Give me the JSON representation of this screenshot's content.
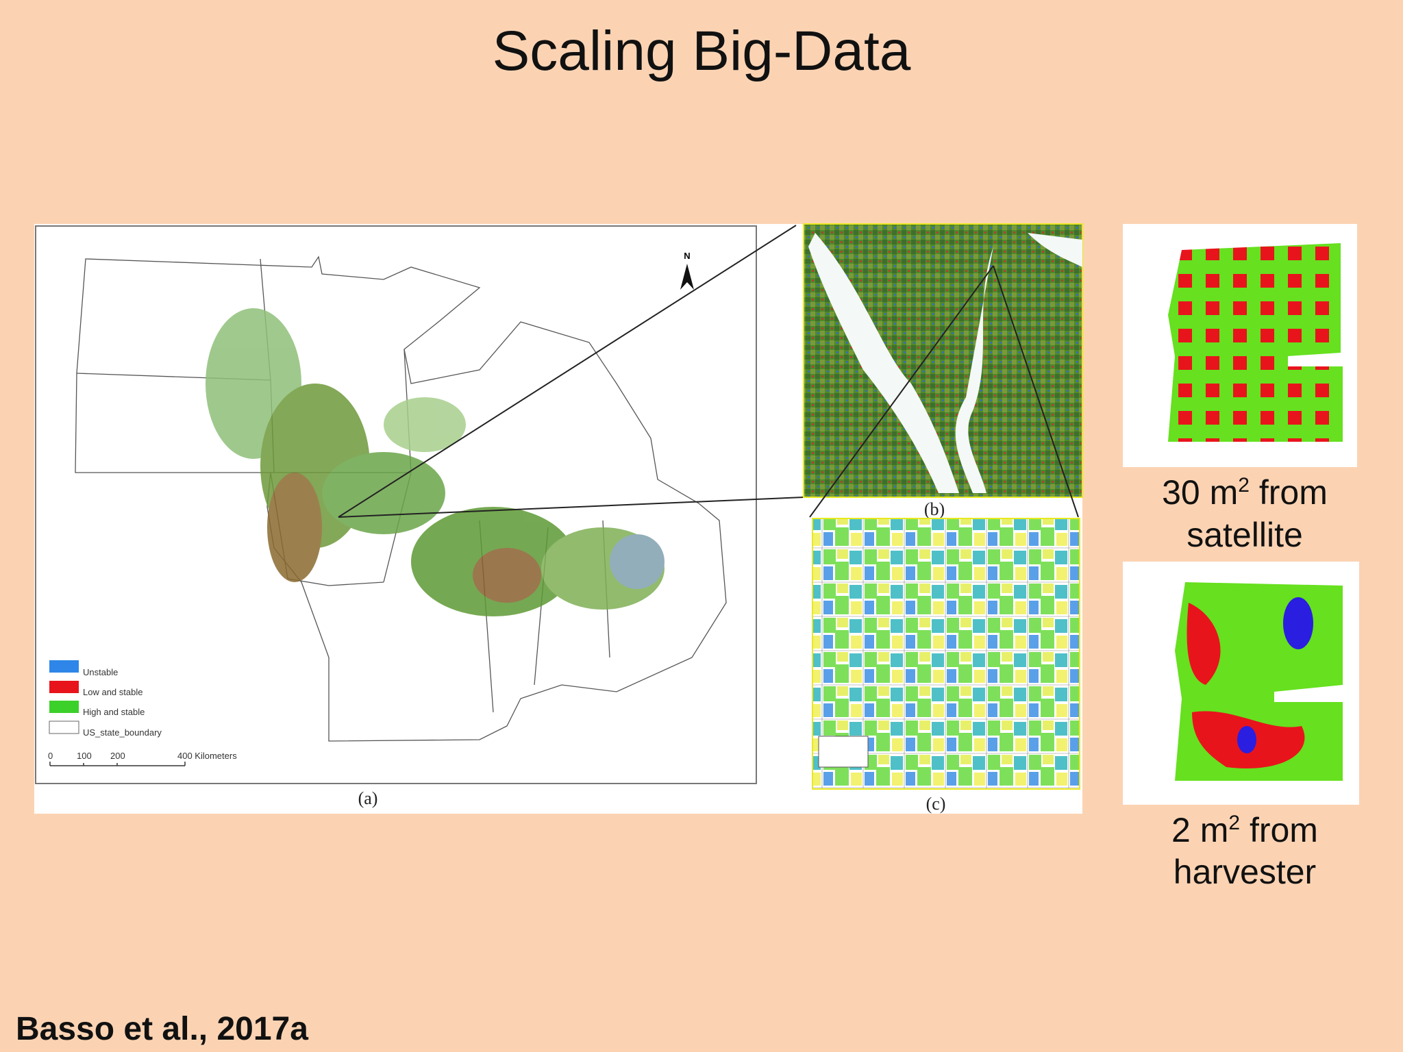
{
  "title": "Scaling Big-Data",
  "figure": {
    "legend": [
      "Unstable",
      "Low and stable",
      "High and stable",
      "US_state_boundary"
    ],
    "scale_bar": [
      "0",
      "100",
      "200",
      "400 Kilometers"
    ],
    "north": "N",
    "panels": [
      "(a)",
      "(b)",
      "(c)"
    ]
  },
  "captions": [
    {
      "base": "30 m",
      "sup": "2",
      "rest": " from",
      "line2": "satellite"
    },
    {
      "base": "2 m",
      "sup": "2",
      "rest": " from",
      "line2": "harvester"
    }
  ],
  "citation": "Basso et al., 2017a"
}
